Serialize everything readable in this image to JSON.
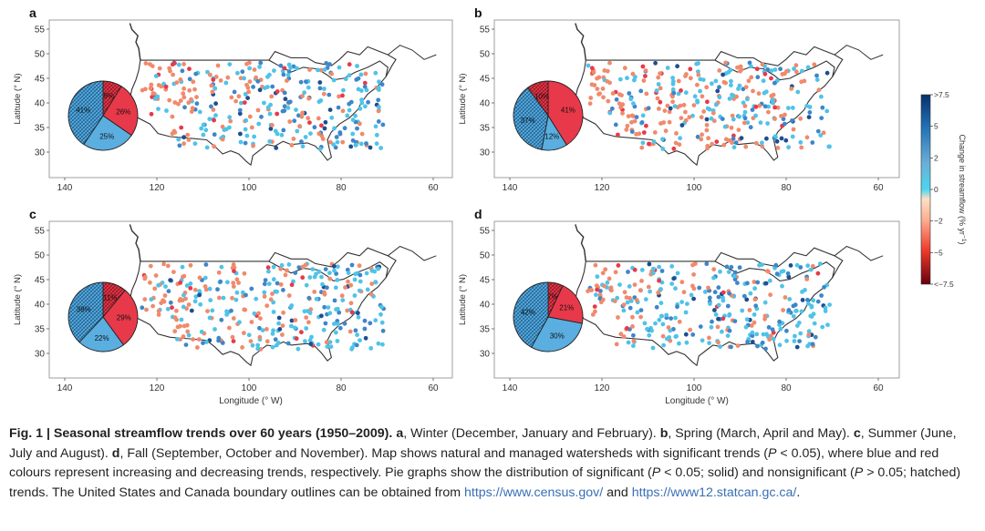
{
  "panels": [
    {
      "id": "a",
      "pie": [
        {
          "label": "9%",
          "value": 9,
          "kind": "dec-hatch"
        },
        {
          "label": "26%",
          "value": 26,
          "kind": "dec"
        },
        {
          "label": "25%",
          "value": 25,
          "kind": "inc"
        },
        {
          "label": "41%",
          "value": 41,
          "kind": "inc-hatch"
        }
      ]
    },
    {
      "id": "b",
      "pie": [
        {
          "label": "41%",
          "value": 41,
          "kind": "dec"
        },
        {
          "label": "12%",
          "value": 12,
          "kind": "inc"
        },
        {
          "label": "37%",
          "value": 37,
          "kind": "inc-hatch"
        },
        {
          "label": "10%",
          "value": 10,
          "kind": "dec-hatch"
        }
      ]
    },
    {
      "id": "c",
      "pie": [
        {
          "label": "11%",
          "value": 11,
          "kind": "dec-hatch"
        },
        {
          "label": "29%",
          "value": 29,
          "kind": "dec"
        },
        {
          "label": "22%",
          "value": 22,
          "kind": "inc"
        },
        {
          "label": "38%",
          "value": 38,
          "kind": "inc-hatch"
        }
      ]
    },
    {
      "id": "d",
      "pie": [
        {
          "label": "7%",
          "value": 7,
          "kind": "dec-hatch"
        },
        {
          "label": "21%",
          "value": 21,
          "kind": "dec"
        },
        {
          "label": "30%",
          "value": 30,
          "kind": "inc"
        },
        {
          "label": "42%",
          "value": 42,
          "kind": "inc-hatch"
        }
      ]
    }
  ],
  "axes": {
    "y_label": "Latitude (° N)",
    "x_label": "Longitude (° W)",
    "y_ticks": [
      "55",
      "50",
      "45",
      "40",
      "35",
      "30"
    ],
    "x_ticks": [
      "140",
      "120",
      "100",
      "80",
      "60"
    ]
  },
  "colorbar": {
    "title": "Change in streamflow (% yr",
    "title_sup": "−1",
    "title_end": ")",
    "ticks": [
      ">7.5",
      "5",
      "2",
      "0",
      "−2",
      "−5",
      "<−7.5"
    ],
    "colors": [
      "#08306b",
      "#2171b5",
      "#6baed6",
      "#4dd6ef",
      "#fdae91",
      "#ef3b2c",
      "#67000d"
    ]
  },
  "colors": {
    "increase": "#5aaee0",
    "decrease": "#e8394a",
    "point_inc": "#4fc3e8",
    "point_dec": "#f08a6c",
    "outline": "#333333"
  },
  "caption": {
    "fig_label": "Fig. 1 | Seasonal streamflow trends over 60 years (1950–2009).",
    "a": "a",
    "a_text": ", Winter (December, January and February). ",
    "b": "b",
    "b_text": ", Spring (March, April and May).",
    "c": "c",
    "c_text": ", Summer (June, July and August). ",
    "d": "d",
    "d_text": ", Fall (September, October and November). Map shows natural and managed watersheds with significant trends (",
    "p1": "P",
    "t1": " < 0.05), where blue and red colours represent increasing and decreasing trends, respectively. Pie graphs show the distribution of significant (",
    "p2": "P",
    "t2": " < 0.05; solid) and nonsignificant (",
    "p3": "P",
    "t3": " > 0.05; hatched) trends. The United States and Canada boundary outlines can be obtained from ",
    "link1": "https://www.census.gov/",
    "t4": " and ",
    "link2": "https://www12.statcan.gc.ca/",
    "t5": "."
  }
}
